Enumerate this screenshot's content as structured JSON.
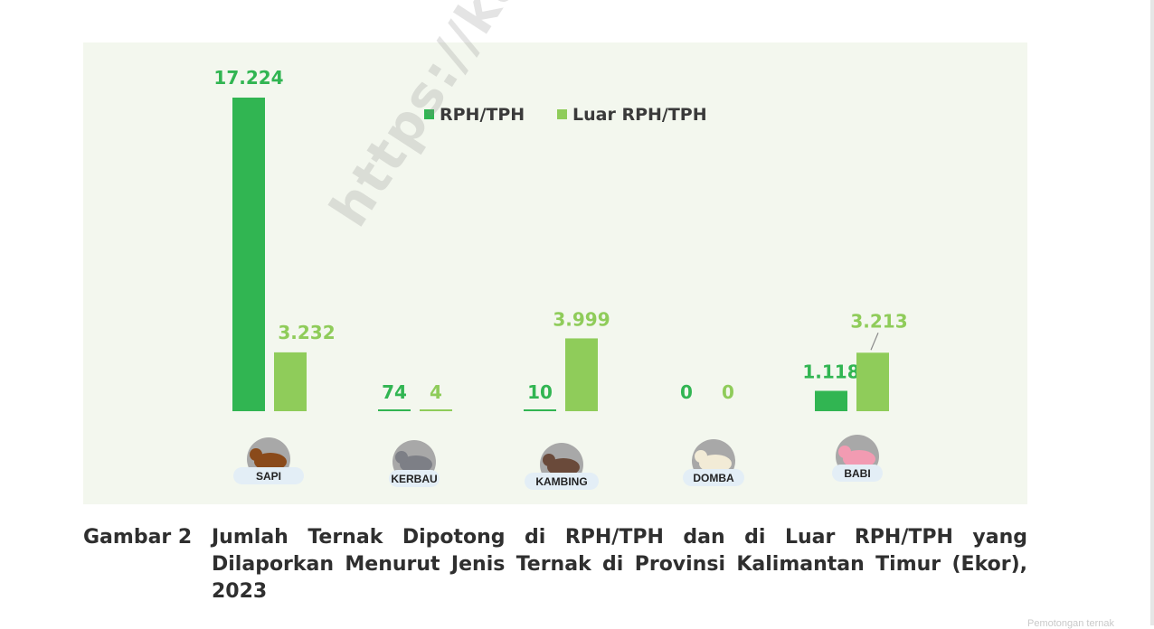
{
  "chart_data": {
    "type": "bar",
    "categories": [
      "SAPI",
      "KERBAU",
      "KAMBING",
      "DOMBA",
      "BABI"
    ],
    "series": [
      {
        "name": "RPH/TPH",
        "values": [
          17224,
          74,
          10,
          0,
          1118
        ],
        "labels": [
          "17.224",
          "74",
          "10",
          "0",
          "1.118"
        ],
        "color": "#31b552"
      },
      {
        "name": "Luar RPH/TPH",
        "values": [
          3232,
          4,
          3999,
          0,
          3213
        ],
        "labels": [
          "3.232",
          "4",
          "3.999",
          "0",
          "3.213"
        ],
        "color": "#8fcc5a"
      }
    ],
    "ylim": [
      0,
      17224
    ],
    "legend_position": "top-center",
    "grid": false
  },
  "icons": [
    "cow-icon",
    "buffalo-icon",
    "goat-icon",
    "sheep-icon",
    "pig-icon"
  ],
  "watermark": "https://kaltim.bps.go.id",
  "caption": {
    "label": "Gambar 2",
    "text": "Jumlah Ternak Dipotong di RPH/TPH dan di Luar RPH/TPH yang Dilaporkan Menurut Jenis Ternak di Provinsi Kalimantan Timur (Ekor), 2023"
  },
  "footer_note": "Pemotongan ternak"
}
